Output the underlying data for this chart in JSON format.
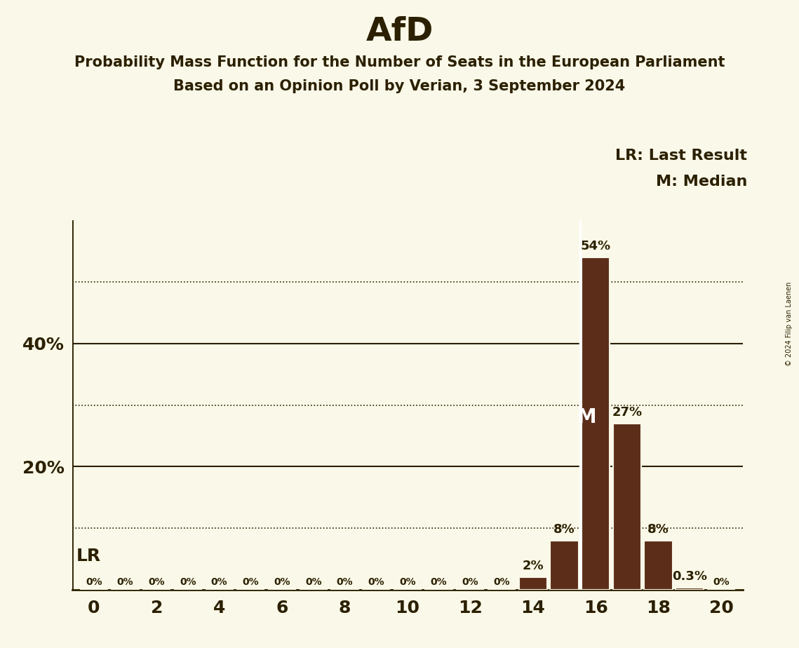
{
  "title": "AfD",
  "subtitle_line1": "Probability Mass Function for the Number of Seats in the European Parliament",
  "subtitle_line2": "Based on an Opinion Poll by Verian, 3 September 2024",
  "copyright": "© 2024 Filip van Laenen",
  "x_seats": [
    0,
    1,
    2,
    3,
    4,
    5,
    6,
    7,
    8,
    9,
    10,
    11,
    12,
    13,
    14,
    15,
    16,
    17,
    18,
    19,
    20
  ],
  "probabilities": [
    0.0,
    0.0,
    0.0,
    0.0,
    0.0,
    0.0,
    0.0,
    0.0,
    0.0,
    0.0,
    0.0,
    0.0,
    0.0,
    0.0,
    2.0,
    8.0,
    54.0,
    27.0,
    8.0,
    0.3,
    0.0
  ],
  "bar_color": "#5c2e1a",
  "background_color": "#faf8e8",
  "text_color": "#2b2000",
  "lr_seat": 15,
  "median_seat": 16,
  "yticks_solid": [
    20,
    40
  ],
  "yticks_dotted": [
    10,
    30,
    50
  ],
  "ymax": 60,
  "xlabel_ticks": [
    0,
    2,
    4,
    6,
    8,
    10,
    12,
    14,
    16,
    18,
    20
  ],
  "title_fontsize": 34,
  "subtitle_fontsize": 15,
  "axis_label_fontsize": 18,
  "bar_label_fontsize": 13,
  "legend_fontsize": 16,
  "lr_label_fontsize": 18
}
